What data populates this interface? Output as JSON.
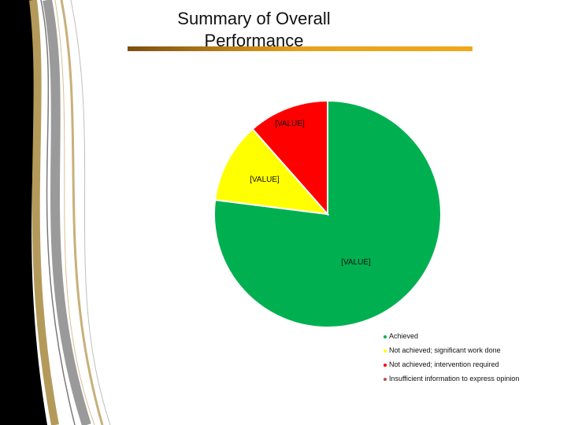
{
  "chart_data": {
    "type": "pie",
    "title": "Summary of Overall Performance",
    "categories": [
      "Achieved",
      "Not achieved; significant work done",
      "Not achieved; intervention required",
      "Insufficient information to express opinion"
    ],
    "values": [
      77,
      11.5,
      11.5,
      0
    ],
    "data_labels": [
      "[VALUE]",
      "[VALUE]",
      "[VALUE]",
      ""
    ],
    "colors": [
      "#00b050",
      "#ffff00",
      "#ff0000",
      "#c0504d"
    ],
    "legend_placement": "bottom-right",
    "start": "top",
    "direction": "clockwise"
  }
}
